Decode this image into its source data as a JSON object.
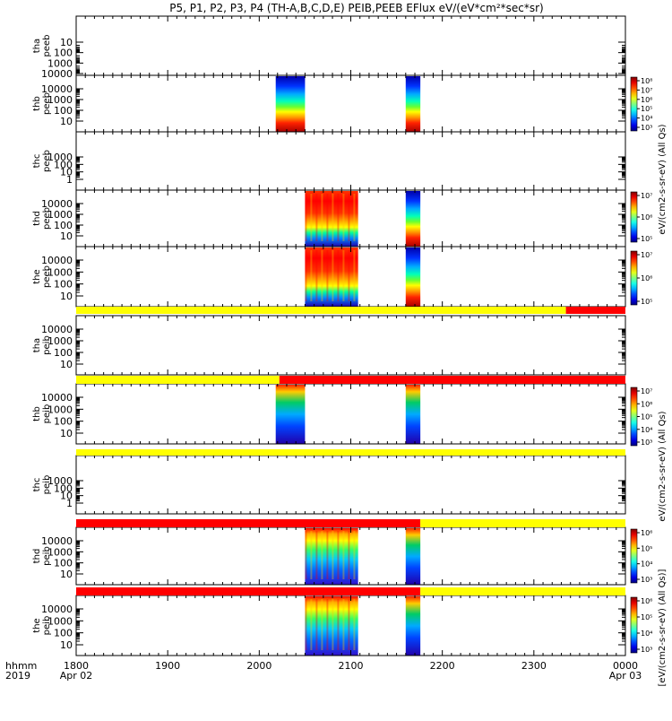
{
  "title": "P5, P1, P2, P3, P4 (TH-A,B,C,D,E) PEIB,PEEB EFlux eV/(eV*cm²*sec*sr)",
  "right_label_units": "eV/(cm2-s-sr-eV) (All Qs)",
  "right_label_full": "[eV/(cm2-s-sr-eV) (All Qs)]",
  "chart_data": [
    {
      "type": "heatmap",
      "panel": "tha peeb",
      "ylabels": [
        "10",
        "100",
        "1000",
        "10000"
      ],
      "ylog": true,
      "blocks": [],
      "colorbar": null,
      "flag": null
    },
    {
      "type": "heatmap",
      "panel": "thb peeb",
      "ylabels": [
        "10",
        "100",
        "1000",
        "10000"
      ],
      "ylog": true,
      "blocks": [
        {
          "x0": 2018,
          "x1": 2050,
          "style": "peeb"
        },
        {
          "x0": 2160,
          "x1": 2176,
          "style": "peeb"
        }
      ],
      "colorbar": {
        "ticks": [
          "10³",
          "10⁴",
          "10⁵",
          "10⁶",
          "10⁷",
          "10⁸"
        ]
      },
      "flag": null
    },
    {
      "type": "heatmap",
      "panel": "thc peeb",
      "ylabels": [
        "1",
        "10",
        "100",
        "1000"
      ],
      "ylog": true,
      "blocks": [],
      "colorbar": null,
      "flag": null
    },
    {
      "type": "heatmap",
      "panel": "thd peeb",
      "ylabels": [
        "10",
        "100",
        "1000",
        "10000"
      ],
      "ylog": true,
      "blocks": [
        {
          "x0": 2050,
          "x1": 2108,
          "style": "peeb"
        },
        {
          "x0": 2160,
          "x1": 2176,
          "style": "peeb"
        }
      ],
      "colorbar": {
        "ticks": [
          "10⁵",
          "10⁶",
          "10⁷"
        ]
      },
      "flag": null
    },
    {
      "type": "heatmap",
      "panel": "the peeb",
      "ylabels": [
        "10",
        "100",
        "1000",
        "10000"
      ],
      "ylog": true,
      "blocks": [
        {
          "x0": 2050,
          "x1": 2108,
          "style": "peeb"
        },
        {
          "x0": 2160,
          "x1": 2176,
          "style": "peeb"
        }
      ],
      "colorbar": {
        "ticks": [
          "10⁵",
          "10⁶",
          "10⁷"
        ]
      },
      "flag": [
        {
          "x0": 1800,
          "x1": 2335,
          "color": "#ffff00"
        },
        {
          "x0": 2335,
          "x1": 2400,
          "color": "#ff0000"
        }
      ]
    },
    {
      "type": "heatmap",
      "panel": "tha peib",
      "ylabels": [
        "10",
        "100",
        "1000",
        "10000"
      ],
      "ylog": true,
      "blocks": [],
      "colorbar": null,
      "flag": null
    },
    {
      "type": "heatmap",
      "panel": "thb peib",
      "ylabels": [
        "10",
        "100",
        "1000",
        "10000"
      ],
      "ylog": true,
      "blocks": [
        {
          "x0": 2018,
          "x1": 2050,
          "style": "peib"
        },
        {
          "x0": 2160,
          "x1": 2176,
          "style": "peib"
        }
      ],
      "colorbar": {
        "ticks": [
          "10³",
          "10⁴",
          "10⁵",
          "10⁶",
          "10⁷"
        ]
      },
      "flag": [
        {
          "x0": 1800,
          "x1": 2022,
          "color": "#ffff00"
        },
        {
          "x0": 2022,
          "x1": 2400,
          "color": "#ff0000"
        }
      ]
    },
    {
      "type": "heatmap",
      "panel": "thc peib",
      "ylabels": [
        "1",
        "10",
        "100",
        "1000"
      ],
      "ylog": true,
      "blocks": [],
      "colorbar": null,
      "flag": [
        {
          "x0": 1800,
          "x1": 2400,
          "color": "#ffff00"
        }
      ]
    },
    {
      "type": "heatmap",
      "panel": "thd peib",
      "ylabels": [
        "10",
        "100",
        "1000",
        "10000"
      ],
      "ylog": true,
      "blocks": [
        {
          "x0": 2050,
          "x1": 2108,
          "style": "peib"
        },
        {
          "x0": 2160,
          "x1": 2176,
          "style": "peib"
        }
      ],
      "colorbar": {
        "ticks": [
          "10³",
          "10⁴",
          "10⁵",
          "10⁶"
        ]
      },
      "flag": [
        {
          "x0": 1800,
          "x1": 2176,
          "color": "#ff0000"
        },
        {
          "x0": 2176,
          "x1": 2400,
          "color": "#ffff00"
        }
      ]
    },
    {
      "type": "heatmap",
      "panel": "the peib",
      "ylabels": [
        "10",
        "100",
        "1000",
        "10000"
      ],
      "ylog": true,
      "blocks": [
        {
          "x0": 2050,
          "x1": 2108,
          "style": "peib"
        },
        {
          "x0": 2160,
          "x1": 2176,
          "style": "peib"
        }
      ],
      "colorbar": {
        "ticks": [
          "10³",
          "10⁴",
          "10⁵",
          "10⁶"
        ]
      },
      "flag": [
        {
          "x0": 1800,
          "x1": 2176,
          "color": "#ff0000"
        },
        {
          "x0": 2176,
          "x1": 2400,
          "color": "#ffff00"
        }
      ]
    }
  ],
  "xaxis": {
    "range": [
      1800,
      2400
    ],
    "ticks": [
      {
        "v": 1800,
        "t": "1800",
        "d": "Apr 02"
      },
      {
        "v": 1900,
        "t": "1900",
        "d": ""
      },
      {
        "v": 2000,
        "t": "2000",
        "d": ""
      },
      {
        "v": 2100,
        "t": "2100",
        "d": ""
      },
      {
        "v": 2200,
        "t": "2200",
        "d": ""
      },
      {
        "v": 2300,
        "t": "2300",
        "d": ""
      },
      {
        "v": 2400,
        "t": "0000",
        "d": "Apr 03"
      }
    ],
    "row1_label": "hhmm",
    "row2_label": "2019"
  }
}
